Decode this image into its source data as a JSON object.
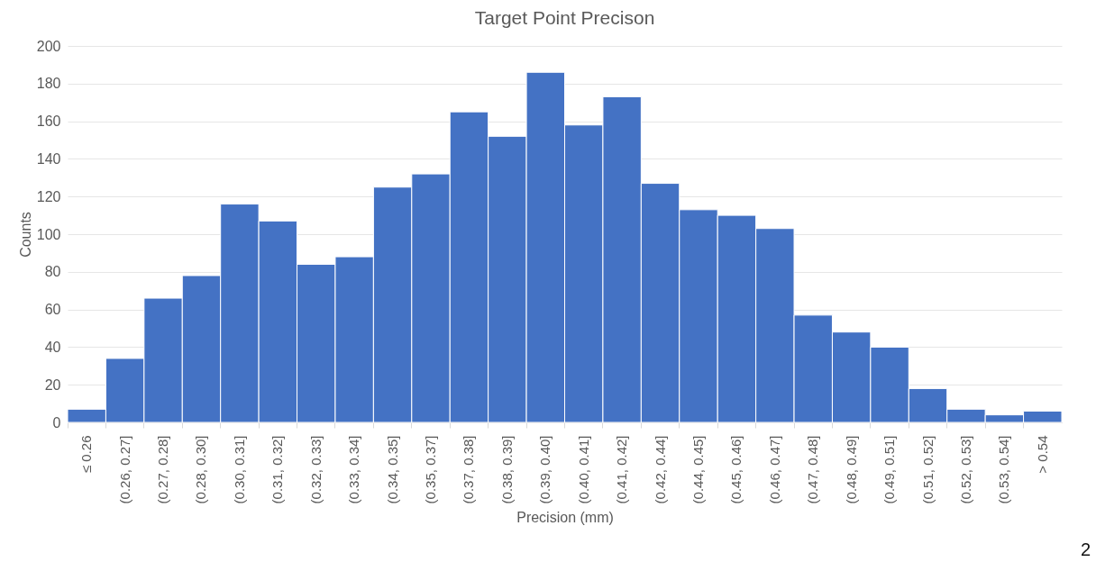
{
  "chart_data": {
    "type": "bar",
    "title": "Target Point Precison",
    "xlabel": "Precision (mm)",
    "ylabel": "Counts",
    "categories": [
      "≤ 0.26",
      "(0.26, 0.27]",
      "(0.27, 0.28]",
      "(0.28, 0.30]",
      "(0.30, 0.31]",
      "(0.31, 0.32]",
      "(0.32, 0.33]",
      "(0.33, 0.34]",
      "(0.34, 0.35]",
      "(0.35, 0.37]",
      "(0.37, 0.38]",
      "(0.38, 0.39]",
      "(0.39, 0.40]",
      "(0.40, 0.41]",
      "(0.41, 0.42]",
      "(0.42, 0.44]",
      "(0.44, 0.45]",
      "(0.45, 0.46]",
      "(0.46, 0.47]",
      "(0.47, 0.48]",
      "(0.48, 0.49]",
      "(0.49, 0.51]",
      "(0.51, 0.52]",
      "(0.52, 0.53]",
      "(0.53, 0.54]",
      "> 0.54"
    ],
    "values": [
      7,
      34,
      66,
      78,
      116,
      107,
      84,
      88,
      125,
      132,
      165,
      152,
      186,
      158,
      173,
      127,
      113,
      110,
      103,
      57,
      48,
      40,
      18,
      7,
      4,
      6
    ],
    "color": "#4472c4",
    "ylim": [
      0,
      200
    ],
    "yticks": [
      0,
      20,
      40,
      60,
      80,
      100,
      120,
      140,
      160,
      180,
      200
    ],
    "grid": "y",
    "annotations": [
      "2"
    ]
  }
}
